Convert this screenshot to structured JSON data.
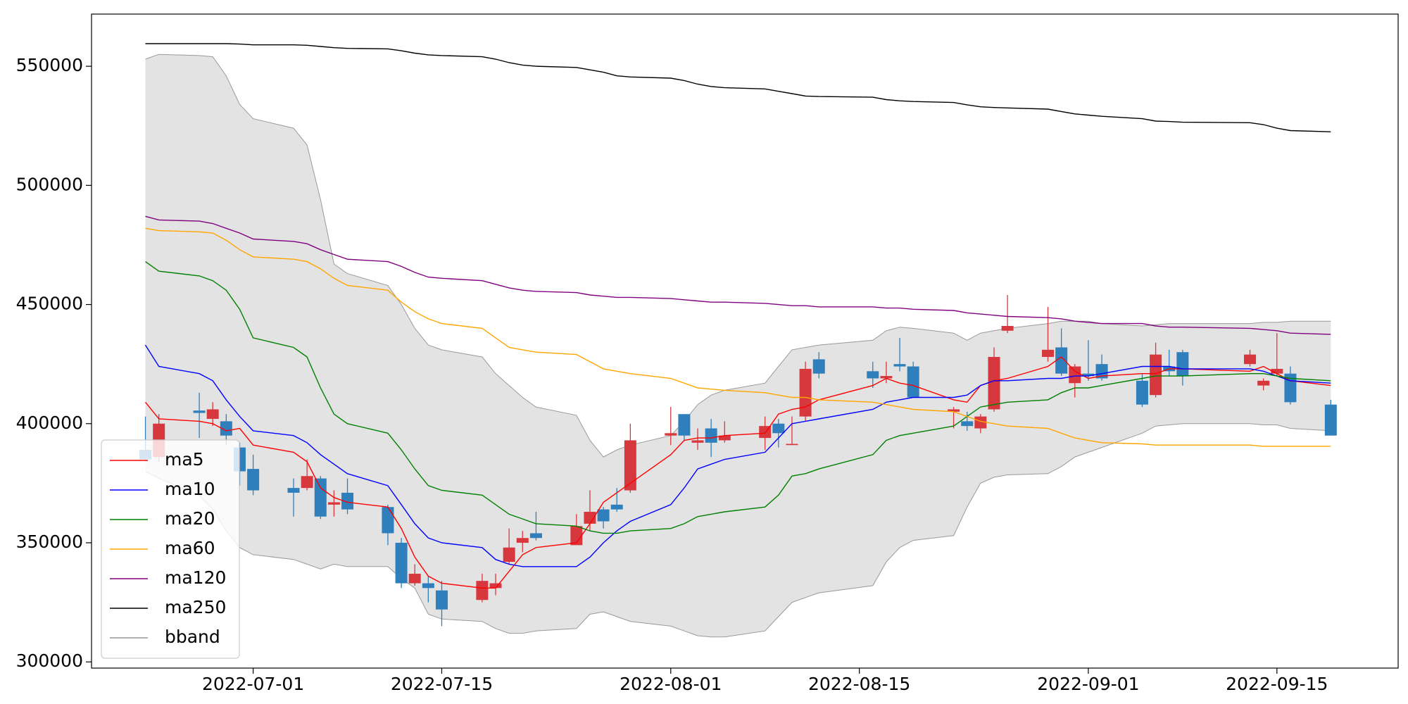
{
  "chart_data": {
    "type": "candlestick",
    "x": [
      "2022-06-23",
      "2022-06-24",
      "2022-06-27",
      "2022-06-28",
      "2022-06-29",
      "2022-06-30",
      "2022-07-01",
      "2022-07-04",
      "2022-07-05",
      "2022-07-06",
      "2022-07-07",
      "2022-07-08",
      "2022-07-11",
      "2022-07-12",
      "2022-07-13",
      "2022-07-14",
      "2022-07-15",
      "2022-07-18",
      "2022-07-19",
      "2022-07-20",
      "2022-07-21",
      "2022-07-22",
      "2022-07-25",
      "2022-07-26",
      "2022-07-27",
      "2022-07-28",
      "2022-07-29",
      "2022-08-01",
      "2022-08-02",
      "2022-08-03",
      "2022-08-04",
      "2022-08-05",
      "2022-08-08",
      "2022-08-09",
      "2022-08-10",
      "2022-08-11",
      "2022-08-12",
      "2022-08-16",
      "2022-08-17",
      "2022-08-18",
      "2022-08-19",
      "2022-08-22",
      "2022-08-23",
      "2022-08-24",
      "2022-08-25",
      "2022-08-26",
      "2022-08-29",
      "2022-08-30",
      "2022-08-31",
      "2022-09-01",
      "2022-09-02",
      "2022-09-05",
      "2022-09-06",
      "2022-09-07",
      "2022-09-08",
      "2022-09-13",
      "2022-09-14",
      "2022-09-15",
      "2022-09-16",
      "2022-09-19"
    ],
    "open": [
      389000,
      386000,
      405500,
      402000,
      401000,
      390000,
      381000,
      373000,
      373000,
      377000,
      366000,
      371000,
      365000,
      350000,
      333000,
      333000,
      330000,
      326000,
      331000,
      342000,
      350000,
      354000,
      349000,
      358000,
      364000,
      366000,
      372000,
      395000,
      404000,
      392000,
      398000,
      393000,
      394000,
      400000,
      391000,
      403000,
      427000,
      422000,
      419000,
      425000,
      424000,
      405000,
      401000,
      398000,
      406000,
      439000,
      428000,
      432000,
      417000,
      421000,
      425000,
      418000,
      412000,
      424000,
      430000,
      425000,
      416000,
      421000,
      421000,
      408000
    ],
    "high": [
      403000,
      404000,
      413000,
      409000,
      404000,
      392000,
      387000,
      377000,
      385000,
      378000,
      372000,
      377000,
      366000,
      352000,
      341000,
      336000,
      334000,
      337000,
      337000,
      356000,
      355000,
      363000,
      362000,
      372000,
      365000,
      373000,
      400000,
      407000,
      404000,
      398000,
      402000,
      401000,
      403000,
      402000,
      403000,
      426000,
      430000,
      426000,
      426000,
      436000,
      426000,
      407000,
      405000,
      404000,
      432000,
      454000,
      449000,
      440000,
      425000,
      435000,
      429000,
      421000,
      434000,
      431000,
      431000,
      431000,
      419000,
      438000,
      424000,
      410000
    ],
    "low": [
      384000,
      384000,
      394000,
      399000,
      391000,
      374000,
      370000,
      361000,
      372000,
      360000,
      361000,
      362000,
      349000,
      331000,
      332000,
      325000,
      315000,
      325000,
      328000,
      341000,
      346000,
      351000,
      349000,
      355000,
      356000,
      363000,
      371000,
      391000,
      393000,
      389000,
      386000,
      392000,
      389000,
      390000,
      391000,
      401000,
      419000,
      415000,
      417000,
      422000,
      411000,
      398000,
      397000,
      396000,
      405000,
      438000,
      426000,
      420000,
      411000,
      418000,
      418000,
      407000,
      411000,
      420000,
      416000,
      424000,
      414000,
      420000,
      408000,
      395000
    ],
    "close": [
      385000,
      400000,
      404500,
      406000,
      395000,
      380000,
      372000,
      371000,
      378000,
      361000,
      367000,
      364000,
      354000,
      333000,
      337000,
      331000,
      322000,
      334000,
      333000,
      348000,
      352000,
      352000,
      357000,
      363000,
      359000,
      364000,
      393000,
      396000,
      395000,
      393000,
      392000,
      395000,
      399000,
      396000,
      391500,
      423000,
      421000,
      419000,
      420000,
      424000,
      411000,
      406000,
      399000,
      403000,
      428000,
      441000,
      431000,
      421000,
      424000,
      420000,
      419000,
      408000,
      429000,
      422000,
      420000,
      429000,
      418000,
      423000,
      409000,
      395000
    ],
    "up_color": "#d6383e",
    "down_color": "#2f7fbc",
    "series": [
      {
        "name": "ma5",
        "color": "#ff0000",
        "values": [
          409000,
          402000,
          401000,
          400000,
          397000,
          398000,
          391000,
          388000,
          384000,
          373000,
          369000,
          367000,
          365000,
          356000,
          344000,
          336000,
          333000,
          331000,
          331000,
          338000,
          345000,
          348000,
          350000,
          358000,
          367000,
          371000,
          375000,
          387000,
          393000,
          394000,
          394000,
          395000,
          396000,
          404000,
          406000,
          407000,
          410000,
          416000,
          419000,
          417000,
          416000,
          410000,
          409000,
          416000,
          418000,
          419000,
          424000,
          428000,
          422000,
          419000,
          420000,
          421000,
          421000,
          423000,
          423000,
          422000,
          424000,
          421000,
          418000,
          416000
        ]
      },
      {
        "name": "ma10",
        "color": "#0000ff",
        "values": [
          433000,
          424000,
          421000,
          418000,
          410000,
          403000,
          397000,
          395000,
          392000,
          387000,
          383000,
          379000,
          374000,
          366000,
          358000,
          352000,
          350000,
          348000,
          343000,
          341000,
          340000,
          340000,
          340000,
          344000,
          350000,
          355000,
          359000,
          366000,
          373000,
          381000,
          383000,
          385000,
          388000,
          394000,
          400000,
          401000,
          402000,
          406000,
          409000,
          410000,
          411000,
          411000,
          412000,
          416000,
          418000,
          418000,
          419000,
          419000,
          420000,
          420000,
          421000,
          424000,
          424000,
          424000,
          423000,
          423000,
          422000,
          420000,
          418000,
          417000
        ]
      },
      {
        "name": "ma20",
        "color": "#008000",
        "values": [
          468000,
          464000,
          462000,
          460000,
          456000,
          448000,
          436000,
          432000,
          428000,
          415000,
          404000,
          400000,
          396000,
          389000,
          381000,
          374000,
          372000,
          370000,
          366000,
          362000,
          360000,
          358000,
          357000,
          355000,
          354000,
          354000,
          355000,
          356000,
          358000,
          361000,
          362000,
          363000,
          365000,
          370000,
          378000,
          379000,
          381000,
          387000,
          393000,
          395000,
          396000,
          399000,
          403000,
          407000,
          408000,
          409000,
          410000,
          413000,
          415000,
          415000,
          416000,
          419000,
          420000,
          420000,
          420000,
          421000,
          421000,
          420000,
          419000,
          418000
        ]
      },
      {
        "name": "ma60",
        "color": "#ffa500",
        "values": [
          482000,
          481000,
          480500,
          480000,
          477000,
          473000,
          470000,
          469000,
          468000,
          465000,
          461000,
          458000,
          456000,
          451000,
          447000,
          444000,
          442000,
          440000,
          436000,
          432000,
          431000,
          430000,
          429000,
          426000,
          423000,
          422000,
          421000,
          419000,
          417000,
          415000,
          414500,
          414000,
          413000,
          412000,
          411000,
          411000,
          410000,
          409000,
          408000,
          407000,
          406000,
          405000,
          403000,
          401000,
          400000,
          399000,
          398000,
          396000,
          394000,
          393000,
          392000,
          391500,
          391000,
          391000,
          391000,
          391000,
          390500,
          390500,
          390500,
          390500
        ]
      },
      {
        "name": "ma120",
        "color": "#800080",
        "values": [
          487000,
          485500,
          485000,
          484000,
          482000,
          480000,
          477500,
          476500,
          475500,
          473000,
          471000,
          469000,
          468000,
          466000,
          463500,
          461500,
          461000,
          460000,
          458500,
          457000,
          456000,
          455500,
          455000,
          454000,
          453500,
          453000,
          453000,
          452500,
          452000,
          451500,
          451000,
          451000,
          450500,
          450000,
          449500,
          449500,
          449000,
          449000,
          448500,
          448500,
          448000,
          447500,
          446500,
          446000,
          445500,
          445000,
          444500,
          444000,
          443000,
          442500,
          442000,
          442000,
          441000,
          440500,
          440500,
          440000,
          439500,
          439000,
          438000,
          437500
        ]
      },
      {
        "name": "ma250",
        "color": "#000000",
        "values": [
          559500,
          559500,
          559500,
          559500,
          559500,
          559300,
          559000,
          559000,
          558800,
          558300,
          557800,
          557500,
          557300,
          556500,
          555500,
          554800,
          554500,
          554000,
          553000,
          551500,
          550500,
          550000,
          549500,
          548500,
          547500,
          546000,
          545500,
          545000,
          544000,
          542500,
          541500,
          541000,
          540500,
          539500,
          538500,
          537500,
          537300,
          537000,
          536000,
          535500,
          535200,
          534800,
          533800,
          533000,
          532700,
          532500,
          532000,
          531000,
          530000,
          529500,
          529000,
          528000,
          527000,
          526800,
          526500,
          526300,
          525500,
          524000,
          523000,
          522500
        ]
      }
    ],
    "band": {
      "name": "bband",
      "color": "#999999",
      "fill": "#e3e3e3",
      "upper": [
        553000,
        555000,
        554500,
        554000,
        546000,
        534000,
        528000,
        524000,
        517000,
        494000,
        467000,
        463000,
        458000,
        450000,
        440000,
        433000,
        431000,
        428000,
        421000,
        416000,
        411000,
        407000,
        403500,
        393000,
        386000,
        389000,
        391000,
        395000,
        401000,
        408000,
        412000,
        414000,
        417000,
        424000,
        431000,
        432000,
        433000,
        435000,
        439000,
        440500,
        440000,
        438000,
        435000,
        438000,
        439000,
        440000,
        442000,
        443000,
        443000,
        443000,
        442000,
        441000,
        441500,
        442000,
        442000,
        442000,
        442500,
        442500,
        443000,
        443000
      ],
      "lower": [
        380000,
        377000,
        370000,
        364000,
        355000,
        348000,
        345000,
        343000,
        341000,
        339000,
        341000,
        340000,
        340000,
        335000,
        331000,
        320000,
        318000,
        317000,
        314000,
        312000,
        312000,
        313000,
        314000,
        320000,
        321000,
        319000,
        317000,
        315000,
        313000,
        311000,
        310500,
        310500,
        313000,
        319000,
        325000,
        327000,
        329000,
        332000,
        342000,
        348000,
        351000,
        353000,
        365000,
        375000,
        377500,
        378500,
        379000,
        382000,
        386000,
        388000,
        390000,
        396000,
        399000,
        399500,
        400000,
        400000,
        399500,
        399500,
        398000,
        397000
      ]
    },
    "xlim": [
      "2022-06-19",
      "2022-09-24"
    ],
    "xticks": [
      "2022-07-01",
      "2022-07-15",
      "2022-08-01",
      "2022-08-15",
      "2022-09-01",
      "2022-09-15"
    ],
    "ylim": [
      297400,
      571900
    ],
    "yticks": [
      300000,
      350000,
      400000,
      450000,
      500000,
      550000
    ],
    "legend": "lower left"
  }
}
